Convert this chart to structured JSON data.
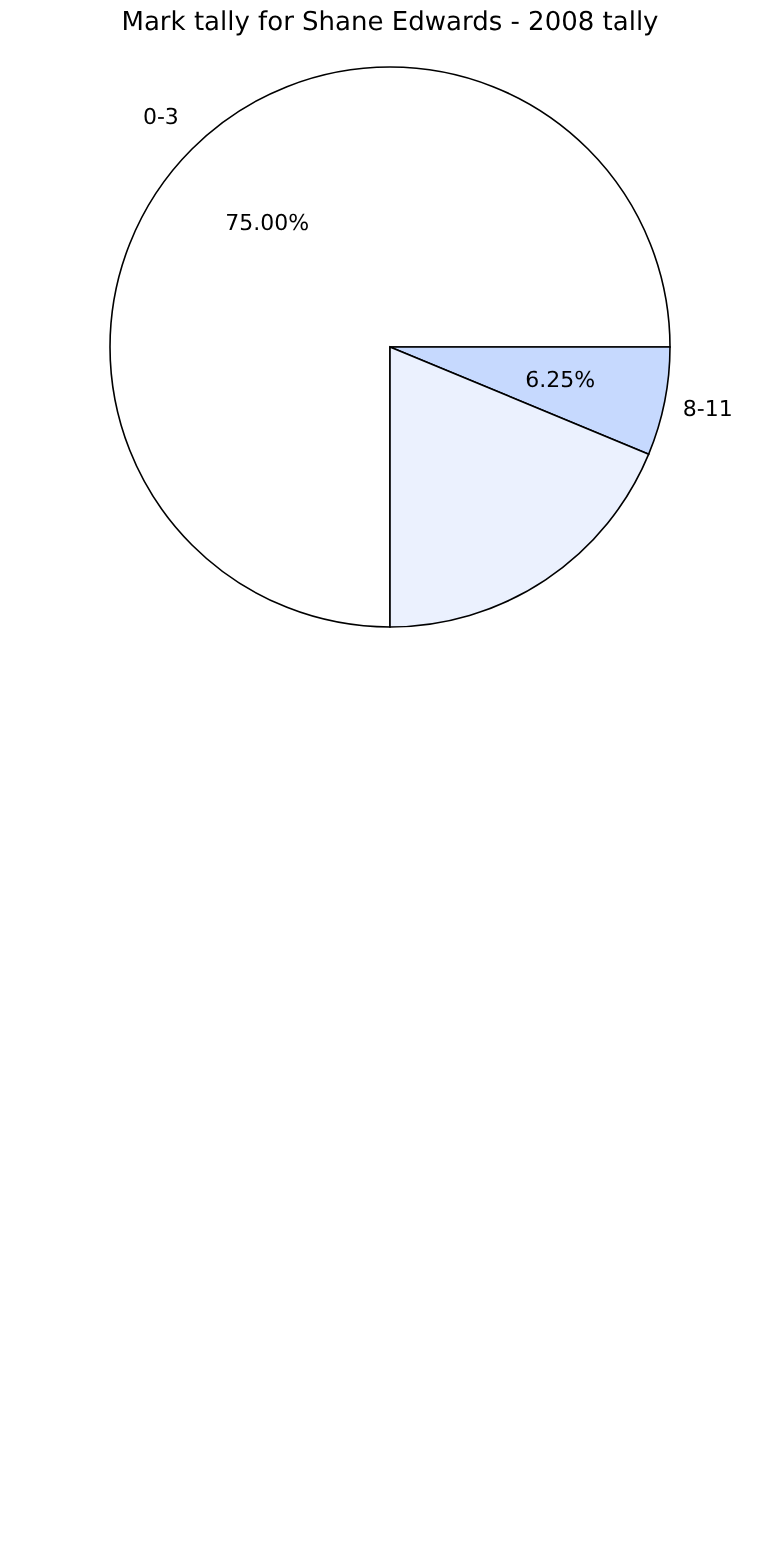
{
  "chart_data": {
    "type": "pie",
    "title": "Mark tally for Shane Edwards - 2008 tally",
    "categories": [
      "0-3",
      "8-11",
      null
    ],
    "values": [
      75,
      6.25,
      18.75
    ],
    "colors": [
      "#ffffff",
      "#c6d9fe",
      "#ebf1fe"
    ],
    "value_labels": [
      "75.00%",
      "6.25%",
      null
    ],
    "legend": false
  }
}
